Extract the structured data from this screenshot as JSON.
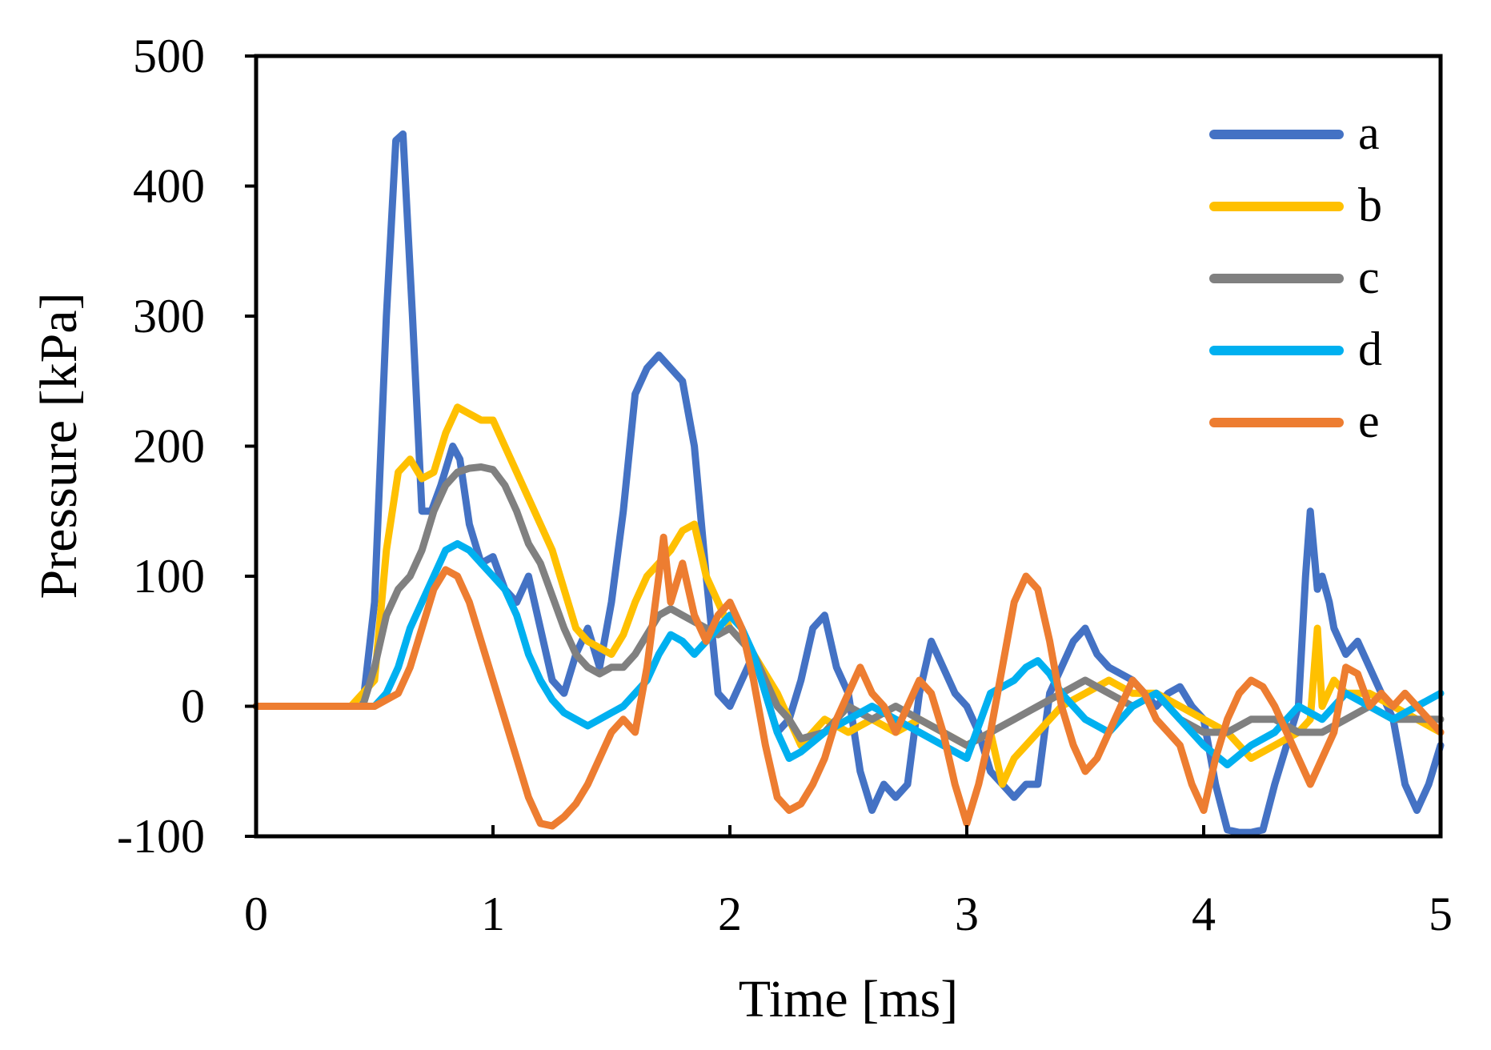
{
  "chart_data": {
    "type": "line",
    "title": "",
    "xlabel": "Time [ms]",
    "ylabel": "Pressure [kPa]",
    "xlim": [
      0,
      5
    ],
    "ylim": [
      -100,
      500
    ],
    "xticks": [
      0,
      1,
      2,
      3,
      4,
      5
    ],
    "yticks": [
      -100,
      0,
      100,
      200,
      300,
      400,
      500
    ],
    "xtick_labels": [
      "0",
      "1",
      "2",
      "3",
      "4",
      "5"
    ],
    "ytick_labels": [
      "-100",
      "0",
      "100",
      "200",
      "300",
      "400",
      "500"
    ],
    "grid": false,
    "legend_position": "top-right",
    "series": [
      {
        "name": "a",
        "color": "#4472C4",
        "x": [
          0,
          0.3,
          0.45,
          0.5,
          0.55,
          0.59,
          0.62,
          0.66,
          0.7,
          0.74,
          0.78,
          0.83,
          0.86,
          0.9,
          0.95,
          1.0,
          1.05,
          1.1,
          1.15,
          1.2,
          1.25,
          1.3,
          1.35,
          1.4,
          1.45,
          1.5,
          1.55,
          1.6,
          1.65,
          1.7,
          1.75,
          1.8,
          1.85,
          1.9,
          1.95,
          2.0,
          2.05,
          2.1,
          2.15,
          2.2,
          2.25,
          2.3,
          2.35,
          2.4,
          2.45,
          2.5,
          2.55,
          2.6,
          2.65,
          2.7,
          2.75,
          2.8,
          2.85,
          2.9,
          2.95,
          3.0,
          3.05,
          3.1,
          3.15,
          3.2,
          3.25,
          3.3,
          3.35,
          3.4,
          3.45,
          3.5,
          3.55,
          3.6,
          3.65,
          3.7,
          3.75,
          3.8,
          3.85,
          3.9,
          3.95,
          4.0,
          4.05,
          4.1,
          4.15,
          4.2,
          4.25,
          4.3,
          4.35,
          4.4,
          4.43,
          4.45,
          4.48,
          4.5,
          4.53,
          4.55,
          4.6,
          4.65,
          4.7,
          4.75,
          4.8,
          4.85,
          4.9,
          4.95,
          5.0
        ],
        "y": [
          0,
          0,
          0,
          80,
          300,
          435,
          440,
          300,
          150,
          150,
          170,
          200,
          190,
          140,
          110,
          115,
          90,
          80,
          100,
          60,
          20,
          10,
          40,
          60,
          30,
          80,
          150,
          240,
          260,
          270,
          260,
          250,
          200,
          100,
          10,
          0,
          20,
          40,
          10,
          -20,
          -10,
          20,
          60,
          70,
          30,
          10,
          -50,
          -80,
          -60,
          -70,
          -60,
          10,
          50,
          30,
          10,
          0,
          -20,
          -50,
          -60,
          -70,
          -60,
          -60,
          10,
          30,
          50,
          60,
          40,
          30,
          25,
          20,
          10,
          0,
          10,
          15,
          0,
          -10,
          -60,
          -95,
          -97,
          -97,
          -95,
          -60,
          -30,
          0,
          100,
          150,
          90,
          100,
          80,
          60,
          40,
          50,
          30,
          10,
          -10,
          -60,
          -80,
          -60,
          -30
        ]
      },
      {
        "name": "b",
        "color": "#FFC000",
        "x": [
          0,
          0.4,
          0.5,
          0.55,
          0.6,
          0.65,
          0.7,
          0.75,
          0.8,
          0.85,
          0.9,
          0.95,
          1.0,
          1.05,
          1.1,
          1.15,
          1.2,
          1.25,
          1.3,
          1.35,
          1.4,
          1.45,
          1.5,
          1.55,
          1.6,
          1.65,
          1.7,
          1.75,
          1.8,
          1.85,
          1.9,
          1.95,
          2.0,
          2.1,
          2.2,
          2.3,
          2.4,
          2.5,
          2.6,
          2.7,
          2.8,
          2.9,
          3.0,
          3.1,
          3.15,
          3.2,
          3.25,
          3.3,
          3.4,
          3.5,
          3.6,
          3.7,
          3.8,
          3.9,
          4.0,
          4.1,
          4.2,
          4.3,
          4.4,
          4.45,
          4.48,
          4.5,
          4.55,
          4.6,
          4.7,
          4.8,
          4.9,
          5.0
        ],
        "y": [
          0,
          0,
          20,
          120,
          180,
          190,
          175,
          180,
          210,
          230,
          225,
          220,
          220,
          200,
          180,
          160,
          140,
          120,
          90,
          60,
          50,
          45,
          40,
          55,
          80,
          100,
          110,
          120,
          135,
          140,
          100,
          80,
          60,
          40,
          10,
          -30,
          -10,
          -20,
          -10,
          -20,
          -10,
          -20,
          -30,
          -20,
          -60,
          -40,
          -30,
          -20,
          0,
          10,
          20,
          10,
          10,
          0,
          -10,
          -20,
          -40,
          -30,
          -20,
          -10,
          60,
          0,
          20,
          10,
          10,
          0,
          -10,
          -20
        ]
      },
      {
        "name": "c",
        "color": "#808080",
        "x": [
          0,
          0.45,
          0.5,
          0.55,
          0.6,
          0.65,
          0.7,
          0.75,
          0.8,
          0.85,
          0.9,
          0.95,
          1.0,
          1.05,
          1.1,
          1.15,
          1.2,
          1.25,
          1.3,
          1.35,
          1.4,
          1.45,
          1.5,
          1.55,
          1.6,
          1.65,
          1.7,
          1.75,
          1.8,
          1.85,
          1.9,
          1.95,
          2.0,
          2.05,
          2.1,
          2.15,
          2.2,
          2.25,
          2.3,
          2.4,
          2.5,
          2.6,
          2.7,
          2.8,
          2.9,
          3.0,
          3.1,
          3.2,
          3.3,
          3.4,
          3.5,
          3.6,
          3.7,
          3.8,
          3.9,
          4.0,
          4.1,
          4.2,
          4.3,
          4.4,
          4.5,
          4.6,
          4.7,
          4.8,
          4.9,
          5.0
        ],
        "y": [
          0,
          0,
          30,
          70,
          90,
          100,
          120,
          150,
          170,
          180,
          183,
          184,
          182,
          170,
          150,
          125,
          110,
          85,
          60,
          40,
          30,
          25,
          30,
          30,
          40,
          55,
          70,
          75,
          70,
          65,
          60,
          55,
          60,
          50,
          40,
          20,
          0,
          -10,
          -25,
          -20,
          0,
          -10,
          0,
          -10,
          -20,
          -30,
          -20,
          -10,
          0,
          10,
          20,
          10,
          0,
          10,
          -10,
          -20,
          -20,
          -10,
          -10,
          -20,
          -20,
          -10,
          0,
          -10,
          -10,
          -10
        ]
      },
      {
        "name": "d",
        "color": "#00B0F0",
        "x": [
          0,
          0.5,
          0.55,
          0.6,
          0.65,
          0.7,
          0.75,
          0.8,
          0.85,
          0.9,
          0.95,
          1.0,
          1.05,
          1.1,
          1.15,
          1.2,
          1.25,
          1.3,
          1.35,
          1.4,
          1.45,
          1.5,
          1.55,
          1.6,
          1.65,
          1.7,
          1.75,
          1.8,
          1.85,
          1.9,
          1.95,
          2.0,
          2.05,
          2.1,
          2.15,
          2.2,
          2.25,
          2.3,
          2.4,
          2.5,
          2.6,
          2.7,
          2.8,
          2.9,
          3.0,
          3.1,
          3.2,
          3.25,
          3.3,
          3.35,
          3.4,
          3.5,
          3.6,
          3.7,
          3.8,
          3.9,
          4.0,
          4.1,
          4.2,
          4.3,
          4.4,
          4.5,
          4.6,
          4.7,
          4.8,
          4.9,
          5.0
        ],
        "y": [
          0,
          0,
          10,
          30,
          60,
          80,
          100,
          120,
          125,
          120,
          110,
          100,
          90,
          70,
          40,
          20,
          5,
          -5,
          -10,
          -15,
          -10,
          -5,
          0,
          10,
          20,
          40,
          55,
          50,
          40,
          50,
          60,
          70,
          60,
          40,
          10,
          -20,
          -40,
          -35,
          -20,
          -10,
          0,
          -10,
          -20,
          -30,
          -40,
          10,
          20,
          30,
          35,
          25,
          10,
          -10,
          -20,
          0,
          10,
          -10,
          -30,
          -45,
          -30,
          -20,
          0,
          -10,
          10,
          0,
          -10,
          0,
          10
        ]
      },
      {
        "name": "e",
        "color": "#ED7D31",
        "x": [
          0,
          0.5,
          0.6,
          0.65,
          0.7,
          0.75,
          0.8,
          0.85,
          0.9,
          0.95,
          1.0,
          1.05,
          1.1,
          1.15,
          1.2,
          1.25,
          1.3,
          1.35,
          1.4,
          1.45,
          1.5,
          1.55,
          1.6,
          1.65,
          1.7,
          1.72,
          1.75,
          1.8,
          1.85,
          1.9,
          1.95,
          2.0,
          2.05,
          2.1,
          2.15,
          2.2,
          2.25,
          2.3,
          2.35,
          2.4,
          2.45,
          2.5,
          2.55,
          2.6,
          2.65,
          2.7,
          2.75,
          2.8,
          2.85,
          2.9,
          2.95,
          3.0,
          3.05,
          3.1,
          3.15,
          3.2,
          3.25,
          3.3,
          3.35,
          3.4,
          3.45,
          3.5,
          3.55,
          3.6,
          3.65,
          3.7,
          3.75,
          3.8,
          3.85,
          3.9,
          3.95,
          4.0,
          4.05,
          4.1,
          4.15,
          4.2,
          4.25,
          4.3,
          4.35,
          4.4,
          4.45,
          4.5,
          4.55,
          4.6,
          4.65,
          4.7,
          4.75,
          4.8,
          4.85,
          4.9,
          4.95,
          5.0
        ],
        "y": [
          0,
          0,
          10,
          30,
          60,
          90,
          105,
          100,
          80,
          50,
          20,
          -10,
          -40,
          -70,
          -90,
          -92,
          -85,
          -75,
          -60,
          -40,
          -20,
          -10,
          -20,
          30,
          100,
          130,
          80,
          110,
          70,
          50,
          70,
          80,
          60,
          20,
          -30,
          -70,
          -80,
          -75,
          -60,
          -40,
          -10,
          10,
          30,
          10,
          0,
          -20,
          0,
          20,
          10,
          -20,
          -60,
          -90,
          -60,
          -20,
          30,
          80,
          100,
          90,
          50,
          0,
          -30,
          -50,
          -40,
          -20,
          0,
          20,
          10,
          -10,
          -20,
          -30,
          -60,
          -80,
          -40,
          -10,
          10,
          20,
          15,
          0,
          -20,
          -40,
          -60,
          -40,
          -20,
          30,
          25,
          0,
          10,
          0,
          10,
          0,
          -10,
          -20
        ]
      }
    ]
  }
}
